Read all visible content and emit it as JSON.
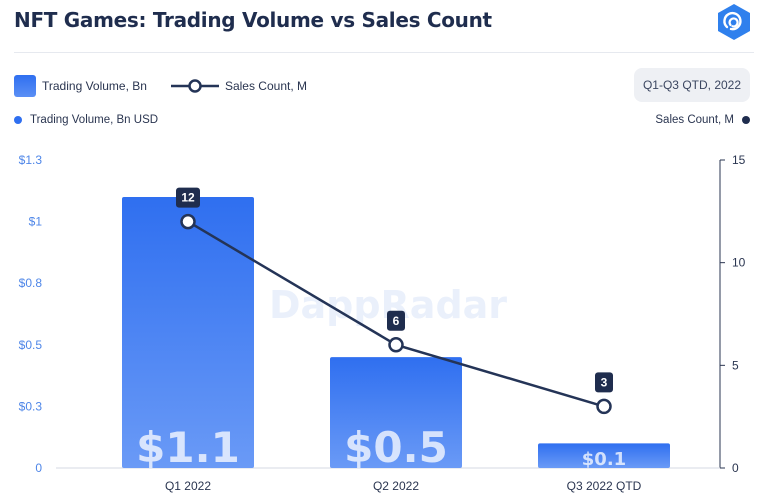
{
  "header": {
    "title": "NFT Games: Trading Volume vs Sales Count",
    "logo_icon": "dappradar-logo-icon"
  },
  "legend": {
    "bar_label": "Trading Volume, Bn",
    "line_label": "Sales Count, M"
  },
  "period_badge": "Q1-Q3 QTD, 2022",
  "axis_names": {
    "left": "Trading Volume, Bn USD",
    "right": "Sales Count, M"
  },
  "watermark": "DappRadar",
  "colors": {
    "bar_top": "#2f6ff0",
    "bar_bottom": "#6a9af6",
    "line": "#243457",
    "label_box": "#1f2d4e"
  },
  "chart_data": {
    "type": "bar",
    "title": "NFT Games: Trading Volume vs Sales Count",
    "categories": [
      "Q1 2022",
      "Q2 2022",
      "Q3 2022 QTD"
    ],
    "series": [
      {
        "name": "Trading Volume, Bn",
        "type": "bar",
        "axis": "left",
        "values": [
          1.1,
          0.45,
          0.1
        ],
        "value_labels": [
          "$1.1",
          "$0.5",
          "$0.1"
        ]
      },
      {
        "name": "Sales Count, M",
        "type": "line",
        "axis": "right",
        "values": [
          12,
          6,
          3
        ],
        "value_labels": [
          "12",
          "6",
          "3"
        ]
      }
    ],
    "y_left": {
      "label": "Trading Volume, Bn USD",
      "ylim": [
        0,
        1.25
      ],
      "ticks": [
        0,
        0.25,
        0.5,
        0.75,
        1.0,
        1.25
      ],
      "tick_labels": [
        "0",
        "$0.3",
        "$0.5",
        "$0.8",
        "$1",
        "$1.3"
      ]
    },
    "y_right": {
      "label": "Sales Count, M",
      "ylim": [
        0,
        15
      ],
      "ticks": [
        0,
        5,
        10,
        15
      ],
      "tick_labels": [
        "0",
        "5",
        "10",
        "15"
      ]
    },
    "grid": false,
    "legend_position": "top-left"
  }
}
